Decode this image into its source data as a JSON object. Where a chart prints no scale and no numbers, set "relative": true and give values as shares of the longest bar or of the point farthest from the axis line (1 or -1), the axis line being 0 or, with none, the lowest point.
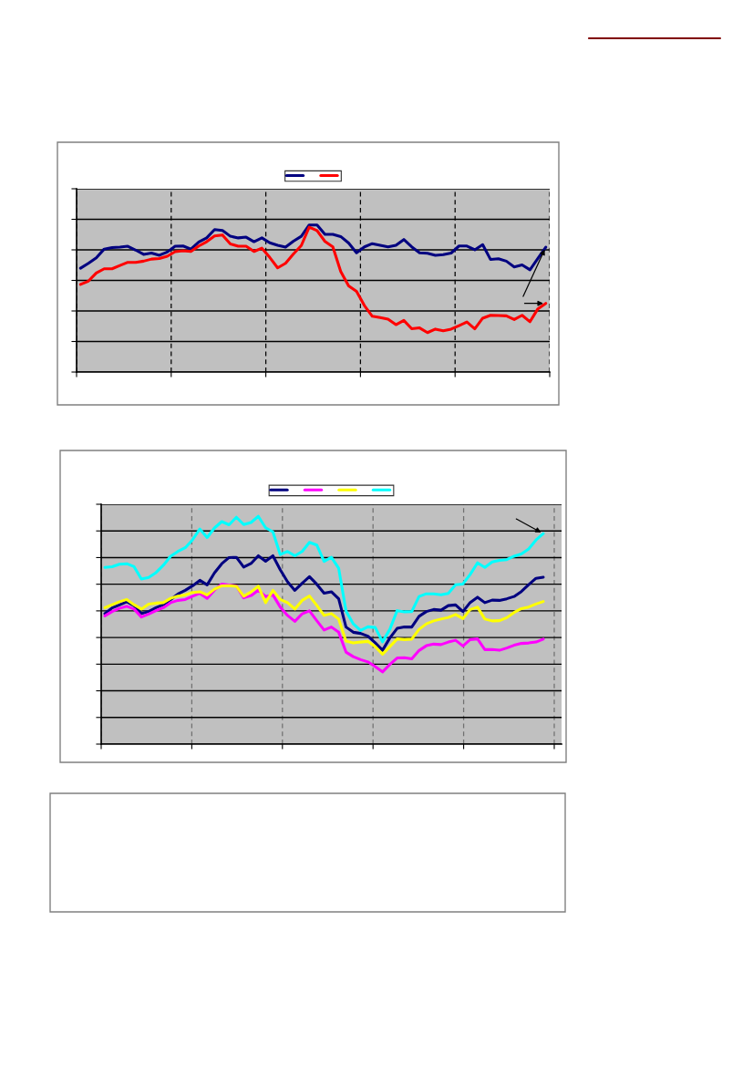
{
  "chart_data": [
    {
      "type": "line",
      "relative": true,
      "grid": true,
      "tick_labels": false,
      "marker": "none",
      "line_style": "solid",
      "categories": [
        null,
        null,
        null,
        null,
        null,
        null,
        null,
        null,
        null,
        null,
        null,
        null,
        null,
        null,
        null,
        null,
        null,
        null,
        null,
        null,
        null,
        null,
        null,
        null,
        null,
        null,
        null,
        null,
        null,
        null,
        null,
        null,
        null,
        null,
        null,
        null,
        null,
        null,
        null,
        null,
        null,
        null,
        null,
        null,
        null,
        null,
        null,
        null,
        null,
        null,
        null,
        null,
        null,
        null,
        null,
        null,
        null,
        null,
        null,
        null
      ],
      "series": [
        {
          "color": "#000080",
          "values": [
            0.706,
            0.739,
            0.776,
            0.836,
            0.846,
            0.849,
            0.855,
            0.829,
            0.8,
            0.809,
            0.794,
            0.816,
            0.855,
            0.857,
            0.836,
            0.884,
            0.912,
            0.969,
            0.963,
            0.923,
            0.912,
            0.917,
            0.886,
            0.912,
            0.879,
            0.862,
            0.849,
            0.89,
            0.923,
            1,
            1,
            0.936,
            0.936,
            0.921,
            0.877,
            0.811,
            0.851,
            0.873,
            0.862,
            0.851,
            0.862,
            0.901,
            0.851,
            0.811,
            0.807,
            0.794,
            0.798,
            0.809,
            0.857,
            0.857,
            0.831,
            0.866,
            0.765,
            0.77,
            0.754,
            0.715,
            0.728,
            0.695,
            0.772,
            0.849
          ]
        },
        {
          "color": "#ff0000",
          "values": [
            0.596,
            0.618,
            0.673,
            0.702,
            0.702,
            0.724,
            0.746,
            0.746,
            0.754,
            0.768,
            0.772,
            0.787,
            0.818,
            0.825,
            0.82,
            0.857,
            0.886,
            0.925,
            0.932,
            0.871,
            0.855,
            0.855,
            0.82,
            0.842,
            0.779,
            0.708,
            0.739,
            0.803,
            0.86,
            0.985,
            0.961,
            0.888,
            0.851,
            0.684,
            0.586,
            0.548,
            0.452,
            0.379,
            0.371,
            0.36,
            0.322,
            0.351,
            0.294,
            0.3,
            0.268,
            0.292,
            0.281,
            0.292,
            0.316,
            0.34,
            0.294,
            0.366,
            0.386,
            0.384,
            0.382,
            0.357,
            0.386,
            0.342,
            0.43,
            0.467
          ]
        }
      ]
    },
    {
      "type": "line",
      "relative": true,
      "grid": true,
      "tick_labels": false,
      "marker": "none",
      "line_style": "solid",
      "categories": [
        null,
        null,
        null,
        null,
        null,
        null,
        null,
        null,
        null,
        null,
        null,
        null,
        null,
        null,
        null,
        null,
        null,
        null,
        null,
        null,
        null,
        null,
        null,
        null,
        null,
        null,
        null,
        null,
        null,
        null,
        null,
        null,
        null,
        null,
        null,
        null,
        null,
        null,
        null,
        null,
        null,
        null,
        null,
        null,
        null,
        null,
        null,
        null,
        null,
        null,
        null,
        null,
        null,
        null,
        null,
        null,
        null,
        null,
        null,
        null,
        null
      ],
      "series": [
        {
          "color": "#000080",
          "values": [
            0.573,
            0.598,
            0.611,
            0.625,
            0.608,
            0.573,
            0.582,
            0.599,
            0.612,
            0.635,
            0.659,
            0.675,
            0.695,
            0.719,
            0.699,
            0.752,
            0.792,
            0.819,
            0.82,
            0.777,
            0.793,
            0.827,
            0.803,
            0.827,
            0.766,
            0.713,
            0.675,
            0.706,
            0.735,
            0.702,
            0.663,
            0.669,
            0.638,
            0.514,
            0.491,
            0.486,
            0.474,
            0.445,
            0.412,
            0.466,
            0.508,
            0.514,
            0.514,
            0.561,
            0.582,
            0.591,
            0.588,
            0.608,
            0.611,
            0.582,
            0.622,
            0.645,
            0.621,
            0.632,
            0.631,
            0.638,
            0.648,
            0.67,
            0.7,
            0.728,
            0.733
          ]
        },
        {
          "color": "#ff00ff",
          "values": [
            0.563,
            0.582,
            0.596,
            0.605,
            0.593,
            0.558,
            0.571,
            0.586,
            0.599,
            0.621,
            0.631,
            0.635,
            0.649,
            0.662,
            0.64,
            0.676,
            0.703,
            0.699,
            0.695,
            0.642,
            0.652,
            0.676,
            0.648,
            0.655,
            0.602,
            0.565,
            0.539,
            0.572,
            0.585,
            0.542,
            0.501,
            0.514,
            0.491,
            0.404,
            0.384,
            0.371,
            0.361,
            0.34,
            0.317,
            0.35,
            0.378,
            0.379,
            0.374,
            0.411,
            0.432,
            0.439,
            0.437,
            0.448,
            0.456,
            0.431,
            0.459,
            0.462,
            0.415,
            0.415,
            0.412,
            0.422,
            0.434,
            0.442,
            0.444,
            0.448,
            0.461
          ]
        },
        {
          "color": "#ffff00",
          "values": [
            0.599,
            0.612,
            0.625,
            0.635,
            0.612,
            0.593,
            0.615,
            0.619,
            0.621,
            0.64,
            0.65,
            0.655,
            0.666,
            0.669,
            0.655,
            0.68,
            0.695,
            0.696,
            0.693,
            0.649,
            0.668,
            0.693,
            0.621,
            0.675,
            0.635,
            0.621,
            0.593,
            0.631,
            0.65,
            0.609,
            0.565,
            0.573,
            0.549,
            0.452,
            0.444,
            0.448,
            0.451,
            0.428,
            0.395,
            0.428,
            0.462,
            0.459,
            0.461,
            0.504,
            0.528,
            0.541,
            0.549,
            0.556,
            0.569,
            0.551,
            0.591,
            0.601,
            0.549,
            0.541,
            0.542,
            0.555,
            0.578,
            0.595,
            0.602,
            0.615,
            0.626
          ]
        },
        {
          "color": "#00ffff",
          "values": [
            0.776,
            0.779,
            0.79,
            0.792,
            0.779,
            0.725,
            0.732,
            0.753,
            0.785,
            0.825,
            0.846,
            0.862,
            0.897,
            0.944,
            0.907,
            0.949,
            0.977,
            0.963,
            0.996,
            0.964,
            0.973,
            1,
            0.95,
            0.932,
            0.832,
            0.846,
            0.827,
            0.846,
            0.886,
            0.874,
            0.802,
            0.82,
            0.772,
            0.585,
            0.528,
            0.499,
            0.515,
            0.512,
            0.449,
            0.504,
            0.586,
            0.581,
            0.582,
            0.648,
            0.66,
            0.66,
            0.656,
            0.662,
            0.7,
            0.703,
            0.745,
            0.796,
            0.776,
            0.8,
            0.807,
            0.81,
            0.825,
            0.835,
            0.857,
            0.896,
            0.924
          ]
        }
      ]
    }
  ]
}
